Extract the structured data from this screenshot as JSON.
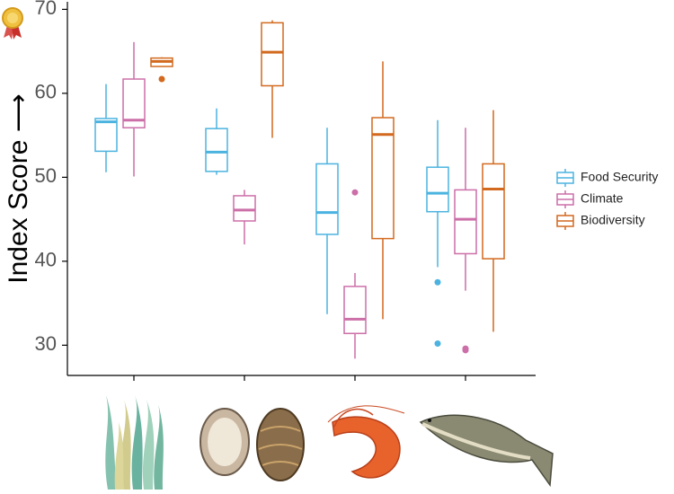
{
  "chart_data": {
    "type": "box",
    "y_label": "Index Score ⟶",
    "categories": [
      null,
      null,
      null,
      null
    ],
    "ylim": [
      26.4,
      70.9
    ],
    "yticks": [
      30,
      40,
      50,
      60,
      70
    ],
    "grid": false,
    "legend": "right",
    "series": [
      {
        "name": "Food Security",
        "color": "#4bb3e0",
        "values": [
          {
            "min": 50.6,
            "q1": 53.1,
            "median": 56.6,
            "q3": 57.0,
            "max": 61.1,
            "outliers": []
          },
          {
            "min": 50.3,
            "q1": 50.7,
            "median": 53.0,
            "q3": 55.8,
            "max": 58.2,
            "outliers": []
          },
          {
            "min": 33.7,
            "q1": 43.2,
            "median": 45.8,
            "q3": 51.6,
            "max": 55.9,
            "outliers": []
          },
          {
            "min": 39.3,
            "q1": 45.9,
            "median": 48.1,
            "q3": 51.2,
            "max": 56.8,
            "outliers": [
              37.5,
              30.2
            ]
          }
        ]
      },
      {
        "name": "Climate",
        "color": "#cc6fa8",
        "values": [
          {
            "min": 50.1,
            "q1": 55.9,
            "median": 56.8,
            "q3": 61.7,
            "max": 66.1,
            "outliers": []
          },
          {
            "min": 42.0,
            "q1": 44.8,
            "median": 46.1,
            "q3": 47.8,
            "max": 48.5,
            "outliers": []
          },
          {
            "min": 28.4,
            "q1": 31.4,
            "median": 33.1,
            "q3": 37.0,
            "max": 38.6,
            "outliers": [
              48.2
            ]
          },
          {
            "min": 36.5,
            "q1": 40.9,
            "median": 45.0,
            "q3": 48.5,
            "max": 55.9,
            "outliers": [
              29.6,
              29.4
            ]
          }
        ]
      },
      {
        "name": "Biodiversity",
        "color": "#d2691e",
        "values": [
          {
            "min": 63.2,
            "q1": 63.2,
            "median": 63.8,
            "q3": 64.2,
            "max": 64.3,
            "outliers": [
              61.7
            ]
          },
          {
            "min": 54.7,
            "q1": 60.9,
            "median": 64.9,
            "q3": 68.4,
            "max": 68.7,
            "outliers": []
          },
          {
            "min": 33.1,
            "q1": 42.7,
            "median": 55.1,
            "q3": 57.1,
            "max": 63.8,
            "outliers": []
          },
          {
            "min": 31.6,
            "q1": 40.3,
            "median": 48.6,
            "q3": 51.6,
            "max": 58.0,
            "outliers": []
          }
        ]
      }
    ]
  }
}
